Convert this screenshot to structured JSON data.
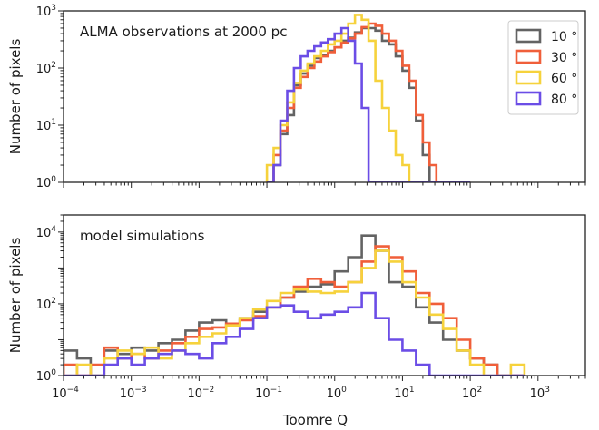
{
  "chart_data": [
    {
      "type": "histogram",
      "annotation": "ALMA observations at 2000 pc",
      "ylabel": "Number of pixels",
      "xscale": "log",
      "yscale": "log",
      "xlim": [
        0.0001,
        5000
      ],
      "ylim": [
        1,
        1000
      ],
      "yticks": [
        {
          "value": 1,
          "label": "10",
          "exp": "0"
        },
        {
          "value": 10,
          "label": "10",
          "exp": "1"
        },
        {
          "value": 100,
          "label": "10",
          "exp": "2"
        },
        {
          "value": 1000,
          "label": "10",
          "exp": "3"
        }
      ],
      "legend": {
        "position": "top-right",
        "entries": [
          {
            "label": "10 °",
            "color": "#636363"
          },
          {
            "label": "30 °",
            "color": "#f05f3a"
          },
          {
            "label": "60 °",
            "color": "#f6d23c"
          },
          {
            "label": "80 °",
            "color": "#6b4de6"
          }
        ]
      },
      "bin_edges_log10": [
        -1.0,
        -0.9,
        -0.8,
        -0.7,
        -0.6,
        -0.5,
        -0.4,
        -0.3,
        -0.2,
        -0.1,
        0.0,
        0.1,
        0.2,
        0.3,
        0.4,
        0.5,
        0.6,
        0.7,
        0.8,
        0.9,
        1.0,
        1.1,
        1.2,
        1.3,
        1.4,
        1.5,
        1.6,
        1.7,
        1.8,
        1.9,
        2.0
      ],
      "series": [
        {
          "name": "10 °",
          "color": "#636363",
          "counts": [
            1,
            2,
            7,
            15,
            50,
            80,
            110,
            150,
            170,
            200,
            230,
            300,
            340,
            420,
            500,
            500,
            450,
            300,
            260,
            160,
            90,
            45,
            12,
            3,
            1,
            0,
            0,
            0,
            0,
            0
          ]
        },
        {
          "name": "30 °",
          "color": "#f05f3a",
          "counts": [
            1,
            3,
            8,
            20,
            45,
            70,
            100,
            130,
            160,
            190,
            230,
            280,
            330,
            400,
            520,
            600,
            550,
            400,
            300,
            200,
            110,
            60,
            15,
            5,
            2,
            1,
            0,
            0,
            0,
            0
          ]
        },
        {
          "name": "60 °",
          "color": "#f6d23c",
          "counts": [
            2,
            4,
            10,
            25,
            55,
            90,
            120,
            160,
            200,
            260,
            300,
            400,
            600,
            850,
            700,
            300,
            60,
            20,
            8,
            3,
            2,
            1,
            1,
            1,
            0,
            0,
            0,
            0,
            0,
            0
          ]
        },
        {
          "name": "80 °",
          "color": "#6b4de6",
          "counts": [
            1,
            2,
            12,
            40,
            100,
            160,
            200,
            240,
            280,
            320,
            400,
            500,
            300,
            120,
            20,
            1,
            0,
            0,
            0,
            0,
            0,
            0,
            0,
            0,
            0,
            0,
            0,
            0,
            0,
            0
          ]
        }
      ]
    },
    {
      "type": "histogram",
      "annotation": "model simulations",
      "xlabel": "Toomre Q",
      "ylabel": "Number of pixels",
      "xscale": "log",
      "yscale": "log",
      "xlim": [
        0.0001,
        5000
      ],
      "ylim": [
        1,
        30000
      ],
      "xticks": [
        {
          "value": 0.0001,
          "label": "10",
          "exp": "−4"
        },
        {
          "value": 0.001,
          "label": "10",
          "exp": "−3"
        },
        {
          "value": 0.01,
          "label": "10",
          "exp": "−2"
        },
        {
          "value": 0.1,
          "label": "10",
          "exp": "−1"
        },
        {
          "value": 1,
          "label": "10",
          "exp": "0"
        },
        {
          "value": 10,
          "label": "10",
          "exp": "1"
        },
        {
          "value": 100,
          "label": "10",
          "exp": "2"
        },
        {
          "value": 1000,
          "label": "10",
          "exp": "3"
        }
      ],
      "yticks": [
        {
          "value": 1,
          "label": "10",
          "exp": "0"
        },
        {
          "value": 100,
          "label": "10",
          "exp": "2"
        },
        {
          "value": 10000,
          "label": "10",
          "exp": "4"
        }
      ],
      "bin_edges_log10": [
        -4.0,
        -3.8,
        -3.6,
        -3.4,
        -3.2,
        -3.0,
        -2.8,
        -2.6,
        -2.4,
        -2.2,
        -2.0,
        -1.8,
        -1.6,
        -1.4,
        -1.2,
        -1.0,
        -0.8,
        -0.6,
        -0.4,
        -0.2,
        0.0,
        0.2,
        0.4,
        0.6,
        0.8,
        1.0,
        1.2,
        1.4,
        1.6,
        1.8,
        2.0,
        2.2,
        2.4,
        2.6,
        2.8
      ],
      "series": [
        {
          "name": "10 °",
          "color": "#636363",
          "counts": [
            5,
            3,
            1,
            5,
            4,
            6,
            5,
            8,
            10,
            18,
            30,
            35,
            25,
            40,
            60,
            80,
            150,
            220,
            300,
            350,
            800,
            2000,
            8000,
            3000,
            400,
            300,
            80,
            30,
            10,
            5,
            3,
            2,
            1,
            1
          ]
        },
        {
          "name": "30 °",
          "color": "#f05f3a",
          "counts": [
            2,
            1,
            2,
            6,
            3,
            4,
            3,
            5,
            8,
            12,
            20,
            22,
            28,
            35,
            45,
            80,
            150,
            300,
            500,
            400,
            300,
            400,
            1500,
            4000,
            2000,
            800,
            200,
            100,
            40,
            10,
            3,
            2,
            1,
            1
          ]
        },
        {
          "name": "60 °",
          "color": "#f6d23c",
          "counts": [
            1,
            2,
            1,
            3,
            5,
            4,
            6,
            3,
            5,
            8,
            12,
            15,
            25,
            40,
            70,
            120,
            200,
            250,
            220,
            200,
            220,
            400,
            1000,
            3000,
            1500,
            400,
            150,
            50,
            20,
            5,
            2,
            1,
            1,
            2
          ]
        },
        {
          "name": "80 °",
          "color": "#6b4de6",
          "counts": [
            1,
            1,
            1,
            2,
            3,
            2,
            3,
            4,
            5,
            4,
            3,
            8,
            12,
            20,
            40,
            80,
            90,
            60,
            40,
            50,
            60,
            80,
            200,
            40,
            10,
            5,
            2,
            1,
            1,
            1,
            1,
            1,
            1,
            1
          ]
        }
      ]
    }
  ]
}
